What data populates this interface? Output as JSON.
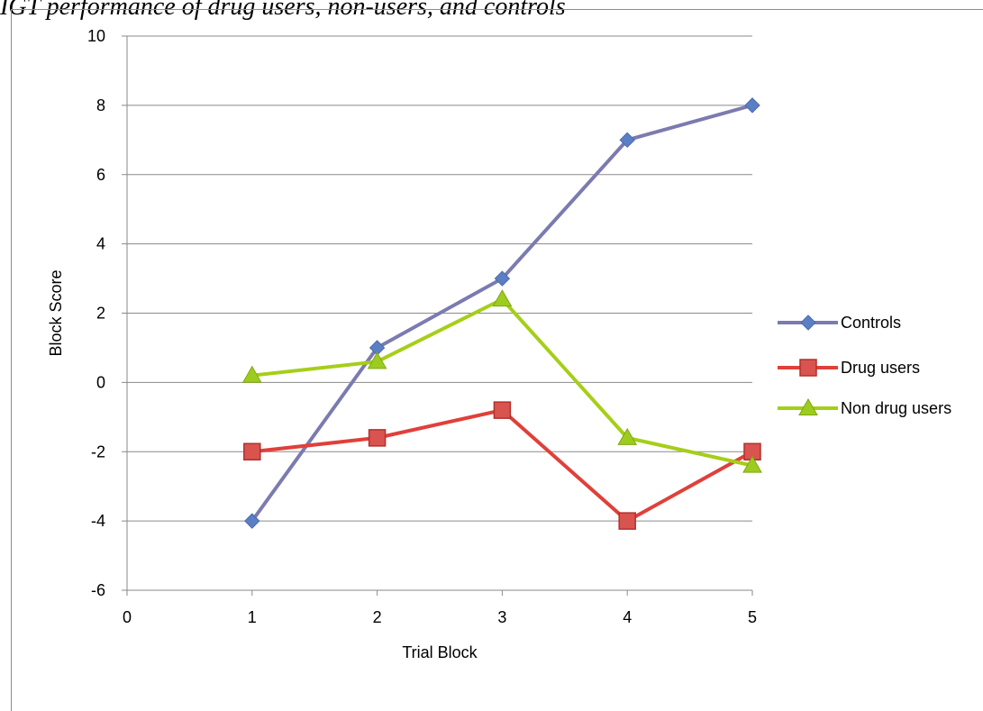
{
  "chart_data": {
    "type": "line",
    "title": "IGT performance of drug users, non-users, and controls",
    "xlabel": "Trial Block",
    "ylabel": "Block Score",
    "xlim": [
      0,
      5
    ],
    "ylim": [
      -6,
      10
    ],
    "xticks": [
      0,
      1,
      2,
      3,
      4,
      5
    ],
    "yticks": [
      -6,
      -4,
      -2,
      0,
      2,
      4,
      6,
      8,
      10
    ],
    "grid": "horizontal",
    "legend_position": "right",
    "x": [
      1,
      2,
      3,
      4,
      5
    ],
    "series": [
      {
        "name": "Controls",
        "values": [
          -4,
          1,
          3,
          7,
          8
        ],
        "color": "#7b7bb0",
        "marker": "diamond",
        "marker_color": "#5b7fc4"
      },
      {
        "name": "Drug users",
        "values": [
          -2,
          -1.6,
          -0.8,
          -4,
          -2
        ],
        "color": "#e0403a",
        "marker": "square",
        "marker_color": "#d9534f"
      },
      {
        "name": "Non drug users",
        "values": [
          0.2,
          0.6,
          2.4,
          -1.6,
          -2.4
        ],
        "color": "#a6ce18",
        "marker": "triangle",
        "marker_color": "#9ccc1f"
      }
    ]
  }
}
